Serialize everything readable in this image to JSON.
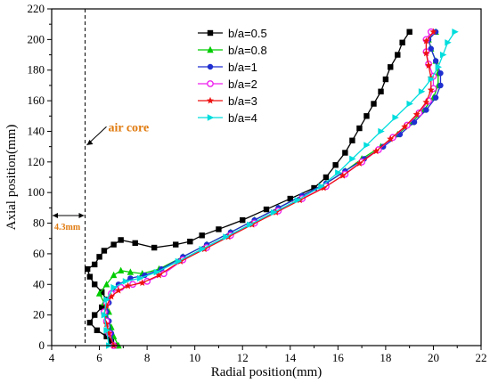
{
  "chart_data": {
    "type": "line",
    "xlabel": "Radial position(mm)",
    "ylabel": "Axial position(mm)",
    "xlim": [
      4,
      22
    ],
    "ylim": [
      0,
      220
    ],
    "xticks": [
      4,
      6,
      8,
      10,
      12,
      14,
      16,
      18,
      20,
      22
    ],
    "yticks": [
      0,
      20,
      40,
      60,
      80,
      100,
      120,
      140,
      160,
      180,
      200,
      220
    ],
    "legend_position": "top-center",
    "annotations": {
      "air_core_label": "air core",
      "air_core_x": 5.4,
      "gap_label": "4.3mm",
      "gap_y": 85
    },
    "series": [
      {
        "name": "b/a=0.5",
        "color": "#000000",
        "marker": "square",
        "points": [
          [
            6.7,
            0
          ],
          [
            6.5,
            3
          ],
          [
            6.3,
            6
          ],
          [
            5.9,
            10
          ],
          [
            5.6,
            15
          ],
          [
            5.8,
            20
          ],
          [
            6.1,
            25
          ],
          [
            6.3,
            30
          ],
          [
            6.1,
            35
          ],
          [
            5.8,
            40
          ],
          [
            5.6,
            45
          ],
          [
            5.5,
            50
          ],
          [
            5.8,
            53
          ],
          [
            6.0,
            58
          ],
          [
            6.2,
            62
          ],
          [
            6.6,
            66
          ],
          [
            6.9,
            69
          ],
          [
            7.5,
            67
          ],
          [
            8.3,
            64
          ],
          [
            9.2,
            66
          ],
          [
            9.8,
            68
          ],
          [
            10.3,
            72
          ],
          [
            11,
            76
          ],
          [
            12,
            82
          ],
          [
            13,
            89
          ],
          [
            14,
            96
          ],
          [
            15,
            103
          ],
          [
            15.5,
            110
          ],
          [
            15.9,
            118
          ],
          [
            16.3,
            126
          ],
          [
            16.6,
            134
          ],
          [
            16.9,
            142
          ],
          [
            17.2,
            150
          ],
          [
            17.5,
            158
          ],
          [
            17.8,
            166
          ],
          [
            18.0,
            174
          ],
          [
            18.2,
            182
          ],
          [
            18.5,
            190
          ],
          [
            18.7,
            198
          ],
          [
            19.0,
            205
          ]
        ]
      },
      {
        "name": "b/a=0.8",
        "color": "#00cc00",
        "marker": "triangle-up",
        "points": [
          [
            6.8,
            0
          ],
          [
            6.6,
            6
          ],
          [
            6.5,
            12
          ],
          [
            6.3,
            18
          ],
          [
            6.4,
            22
          ],
          [
            6.2,
            28
          ],
          [
            6.0,
            34
          ],
          [
            6.3,
            40
          ],
          [
            6.6,
            46
          ],
          [
            6.9,
            49
          ],
          [
            7.3,
            48
          ],
          [
            7.8,
            47
          ],
          [
            8.5,
            50
          ],
          [
            9.5,
            58
          ],
          [
            10.5,
            66
          ],
          [
            11.5,
            74
          ],
          [
            12.5,
            82
          ],
          [
            13.5,
            90
          ],
          [
            14.5,
            98
          ],
          [
            15.5,
            106
          ],
          [
            16.3,
            114
          ],
          [
            17,
            122
          ],
          [
            17.8,
            130
          ],
          [
            18.5,
            138
          ],
          [
            19.1,
            146
          ],
          [
            19.6,
            154
          ],
          [
            20,
            162
          ],
          [
            20.2,
            170
          ],
          [
            20.2,
            178
          ],
          [
            20.1,
            186
          ],
          [
            19.9,
            194
          ],
          [
            19.8,
            200
          ],
          [
            20.1,
            205
          ]
        ]
      },
      {
        "name": "b/a=1",
        "color": "#1f2fd0",
        "marker": "circle",
        "points": [
          [
            6.6,
            0
          ],
          [
            6.5,
            8
          ],
          [
            6.4,
            16
          ],
          [
            6.3,
            22
          ],
          [
            6.4,
            28
          ],
          [
            6.5,
            34
          ],
          [
            6.8,
            40
          ],
          [
            7.3,
            44
          ],
          [
            7.9,
            46
          ],
          [
            8.6,
            50
          ],
          [
            9.5,
            58
          ],
          [
            10.5,
            66
          ],
          [
            11.5,
            74
          ],
          [
            12.5,
            82
          ],
          [
            13.5,
            90
          ],
          [
            14.5,
            98
          ],
          [
            15.5,
            106
          ],
          [
            16.3,
            114
          ],
          [
            17.1,
            122
          ],
          [
            17.9,
            130
          ],
          [
            18.6,
            138
          ],
          [
            19.2,
            146
          ],
          [
            19.7,
            154
          ],
          [
            20.1,
            162
          ],
          [
            20.3,
            170
          ],
          [
            20.3,
            178
          ],
          [
            20.1,
            186
          ],
          [
            19.9,
            194
          ],
          [
            19.8,
            200
          ],
          [
            20.1,
            205
          ]
        ]
      },
      {
        "name": "b/a=2",
        "color": "#ee22ee",
        "marker": "circle-open",
        "points": [
          [
            6.6,
            0
          ],
          [
            6.4,
            8
          ],
          [
            6.3,
            16
          ],
          [
            6.2,
            22
          ],
          [
            6.3,
            28
          ],
          [
            6.5,
            34
          ],
          [
            6.9,
            38
          ],
          [
            7.4,
            40
          ],
          [
            8.0,
            42
          ],
          [
            8.7,
            47
          ],
          [
            9.5,
            56
          ],
          [
            10.5,
            64
          ],
          [
            11.5,
            72
          ],
          [
            12.5,
            80
          ],
          [
            13.5,
            88
          ],
          [
            14.5,
            96
          ],
          [
            15.5,
            104
          ],
          [
            16.3,
            112
          ],
          [
            17.0,
            120
          ],
          [
            17.7,
            128
          ],
          [
            18.3,
            136
          ],
          [
            18.9,
            144
          ],
          [
            19.4,
            152
          ],
          [
            19.8,
            160
          ],
          [
            20.0,
            168
          ],
          [
            20.0,
            176
          ],
          [
            19.8,
            184
          ],
          [
            19.7,
            192
          ],
          [
            19.7,
            200
          ],
          [
            19.9,
            205
          ]
        ]
      },
      {
        "name": "b/a=3",
        "color": "#ee1111",
        "marker": "star",
        "points": [
          [
            6.6,
            0
          ],
          [
            6.4,
            8
          ],
          [
            6.3,
            14
          ],
          [
            6.2,
            20
          ],
          [
            6.3,
            26
          ],
          [
            6.5,
            32
          ],
          [
            6.8,
            36
          ],
          [
            7.2,
            39
          ],
          [
            7.8,
            41
          ],
          [
            8.5,
            46
          ],
          [
            9.4,
            55
          ],
          [
            10.4,
            63
          ],
          [
            11.4,
            71
          ],
          [
            12.4,
            79
          ],
          [
            13.4,
            87
          ],
          [
            14.4,
            95
          ],
          [
            15.4,
            103
          ],
          [
            16.2,
            111
          ],
          [
            16.9,
            119
          ],
          [
            17.6,
            127
          ],
          [
            18.2,
            135
          ],
          [
            18.8,
            143
          ],
          [
            19.3,
            151
          ],
          [
            19.7,
            159
          ],
          [
            19.9,
            167
          ],
          [
            19.9,
            175
          ],
          [
            19.8,
            183
          ],
          [
            19.7,
            191
          ],
          [
            19.7,
            199
          ],
          [
            20.0,
            205
          ]
        ]
      },
      {
        "name": "b/a=4",
        "color": "#00dddd",
        "marker": "triangle-right",
        "points": [
          [
            6.4,
            0
          ],
          [
            6.3,
            10
          ],
          [
            6.2,
            20
          ],
          [
            6.3,
            30
          ],
          [
            6.6,
            38
          ],
          [
            7.1,
            42
          ],
          [
            7.7,
            44
          ],
          [
            8.4,
            48
          ],
          [
            9.3,
            55
          ],
          [
            10.3,
            63
          ],
          [
            11.3,
            71
          ],
          [
            12.3,
            79
          ],
          [
            13.3,
            87
          ],
          [
            14.3,
            95
          ],
          [
            15.3,
            104
          ],
          [
            16.0,
            113
          ],
          [
            16.6,
            122
          ],
          [
            17.2,
            131
          ],
          [
            17.8,
            140
          ],
          [
            18.4,
            149
          ],
          [
            19.0,
            158
          ],
          [
            19.5,
            166
          ],
          [
            19.9,
            174
          ],
          [
            20.2,
            182
          ],
          [
            20.4,
            190
          ],
          [
            20.6,
            198
          ],
          [
            20.9,
            205
          ]
        ]
      }
    ]
  }
}
